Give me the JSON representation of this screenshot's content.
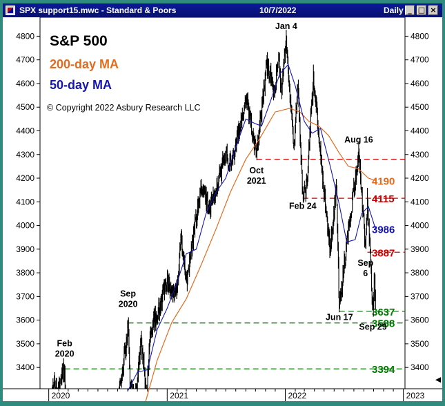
{
  "window": {
    "title": "SPX support15.mwc - Standard & Poors",
    "date": "10/7/2022",
    "period": "Daily",
    "buttons": {
      "minimize": "_",
      "maximize": "□",
      "close": "×"
    }
  },
  "colors": {
    "price": "#000000",
    "ma200": "#e46b1e",
    "ma50": "#1515b0",
    "resistance": "#cc0000",
    "support": "#007a00",
    "title_bar": "#0c1a9a",
    "frame": "#2e8b7d"
  },
  "chart_data": {
    "type": "line",
    "title": "S&P 500",
    "legend": [
      "200-day MA",
      "50-day MA"
    ],
    "copyright": "© Copyright 2022 Asbury Research LLC",
    "ylim": [
      3310,
      4880
    ],
    "y_ticks": [
      3400,
      3500,
      3600,
      3700,
      3800,
      3900,
      4000,
      4100,
      4200,
      4300,
      4400,
      4500,
      4600,
      4700,
      4800
    ],
    "x_range": [
      "2019-12-05",
      "2023-01-06"
    ],
    "x_ticks": [
      {
        "label": "2020",
        "date": "2020-01-01"
      },
      {
        "label": "2021",
        "date": "2021-01-01"
      },
      {
        "label": "2022",
        "date": "2022-01-01"
      },
      {
        "label": "2023",
        "date": "2023-01-01"
      }
    ],
    "price_low_band": [
      [
        "2019-12-05",
        3135
      ],
      [
        "2019-12-15",
        3185
      ],
      [
        "2019-12-31",
        3235
      ],
      [
        "2020-01-10",
        3280
      ],
      [
        "2020-01-17",
        3340
      ],
      [
        "2020-01-28",
        3270
      ],
      [
        "2020-02-05",
        3335
      ],
      [
        "2020-02-12",
        3375
      ],
      [
        "2020-02-19",
        3390
      ],
      [
        "2020-02-26",
        3120
      ],
      [
        "2020-03-10",
        2800
      ]
    ],
    "price_main_band": [
      [
        "2020-07-31",
        3270
      ],
      [
        "2020-08-14",
        3370
      ],
      [
        "2020-08-28",
        3510
      ],
      [
        "2020-09-02",
        3590
      ],
      [
        "2020-09-08",
        3335
      ],
      [
        "2020-09-23",
        3240
      ],
      [
        "2020-10-12",
        3530
      ],
      [
        "2020-10-30",
        3270
      ],
      [
        "2020-11-09",
        3550
      ],
      [
        "2020-11-30",
        3620
      ],
      [
        "2020-12-31",
        3756
      ],
      [
        "2021-01-29",
        3714
      ],
      [
        "2021-02-12",
        3935
      ],
      [
        "2021-03-04",
        3768
      ],
      [
        "2021-04-15",
        4170
      ],
      [
        "2021-05-12",
        4063
      ],
      [
        "2021-06-30",
        4297
      ],
      [
        "2021-07-19",
        4258
      ],
      [
        "2021-08-27",
        4509
      ],
      [
        "2021-09-02",
        4537
      ],
      [
        "2021-10-04",
        4300
      ],
      [
        "2021-11-04",
        4680
      ],
      [
        "2021-11-30",
        4567
      ],
      [
        "2021-12-10",
        4712
      ],
      [
        "2021-12-20",
        4568
      ],
      [
        "2022-01-04",
        4793
      ],
      [
        "2022-01-27",
        4327
      ],
      [
        "2022-02-09",
        4587
      ],
      [
        "2022-02-24",
        4115
      ],
      [
        "2022-03-08",
        4170
      ],
      [
        "2022-03-29",
        4631
      ],
      [
        "2022-04-28",
        4180
      ],
      [
        "2022-05-20",
        3901
      ],
      [
        "2022-06-08",
        4160
      ],
      [
        "2022-06-17",
        3666
      ],
      [
        "2022-07-08",
        3900
      ],
      [
        "2022-08-16",
        4305
      ],
      [
        "2022-09-06",
        3908
      ],
      [
        "2022-09-12",
        4110
      ],
      [
        "2022-09-29",
        3640
      ],
      [
        "2022-10-04",
        3790
      ],
      [
        "2022-10-07",
        3640
      ]
    ],
    "ma200": [
      [
        "2020-10-15",
        3200
      ],
      [
        "2020-12-01",
        3430
      ],
      [
        "2021-01-15",
        3590
      ],
      [
        "2021-03-01",
        3690
      ],
      [
        "2021-04-15",
        3830
      ],
      [
        "2021-06-01",
        3985
      ],
      [
        "2021-07-15",
        4140
      ],
      [
        "2021-09-01",
        4280
      ],
      [
        "2021-10-15",
        4370
      ],
      [
        "2021-12-01",
        4480
      ],
      [
        "2022-01-15",
        4495
      ],
      [
        "2022-02-15",
        4480
      ],
      [
        "2022-03-15",
        4440
      ],
      [
        "2022-04-15",
        4420
      ],
      [
        "2022-05-15",
        4380
      ],
      [
        "2022-06-15",
        4310
      ],
      [
        "2022-07-15",
        4250
      ],
      [
        "2022-08-15",
        4240
      ],
      [
        "2022-09-15",
        4200
      ],
      [
        "2022-10-07",
        4190
      ]
    ],
    "ma50": [
      [
        "2020-09-01",
        3300
      ],
      [
        "2020-10-01",
        3380
      ],
      [
        "2020-11-01",
        3390
      ],
      [
        "2020-12-01",
        3560
      ],
      [
        "2021-01-01",
        3650
      ],
      [
        "2021-02-01",
        3760
      ],
      [
        "2021-03-01",
        3880
      ],
      [
        "2021-04-01",
        3900
      ],
      [
        "2021-05-01",
        4050
      ],
      [
        "2021-06-01",
        4140
      ],
      [
        "2021-07-01",
        4200
      ],
      [
        "2021-08-01",
        4330
      ],
      [
        "2021-09-01",
        4450
      ],
      [
        "2021-10-01",
        4430
      ],
      [
        "2021-10-20",
        4420
      ],
      [
        "2021-11-15",
        4520
      ],
      [
        "2021-12-15",
        4640
      ],
      [
        "2022-01-10",
        4680
      ],
      [
        "2022-02-01",
        4590
      ],
      [
        "2022-03-01",
        4440
      ],
      [
        "2022-03-25",
        4390
      ],
      [
        "2022-04-20",
        4410
      ],
      [
        "2022-05-20",
        4250
      ],
      [
        "2022-06-15",
        4100
      ],
      [
        "2022-07-10",
        3930
      ],
      [
        "2022-08-05",
        3940
      ],
      [
        "2022-08-25",
        4050
      ],
      [
        "2022-09-15",
        4080
      ],
      [
        "2022-10-07",
        3986
      ]
    ],
    "levels": [
      {
        "name": "ma200-label",
        "value": 4190,
        "label": "4190",
        "color": "#e46b1e",
        "line": false
      },
      {
        "name": "resistance-4115",
        "value": 4115,
        "label": "4115",
        "color": "#cc0000",
        "line": true,
        "dash": "red",
        "from": "2022-02-24"
      },
      {
        "name": "resistance-4280",
        "value": 4280,
        "label": "",
        "color": "#cc0000",
        "line": true,
        "dash": "red",
        "from": "2021-10-04"
      },
      {
        "name": "ma50-label",
        "value": 3986,
        "label": "3986",
        "color": "#1515b0",
        "line": false
      },
      {
        "name": "resistance-3887",
        "value": 3887,
        "label": "3887",
        "color": "#cc0000",
        "line": true,
        "dash": "red",
        "from": "2022-09-12"
      },
      {
        "name": "support-3637",
        "value": 3637,
        "label": "3637",
        "color": "#007a00",
        "line": true,
        "dash": "green",
        "from": "2022-06-17"
      },
      {
        "name": "support-3588",
        "value": 3588,
        "label": "3588",
        "color": "#007a00",
        "line": true,
        "dash": "green",
        "from": "2020-09-02"
      },
      {
        "name": "support-3394",
        "value": 3394,
        "label": "3394",
        "color": "#007a00",
        "line": true,
        "dash": "green",
        "from": "2020-02-19"
      }
    ],
    "annotations": [
      {
        "name": "jan-4",
        "lines": [
          "Jan 4"
        ],
        "date": "2022-01-04",
        "y": 4830
      },
      {
        "name": "oct-2021",
        "lines": [
          "Oct",
          "2021"
        ],
        "date": "2021-10-04",
        "y": 4220
      },
      {
        "name": "aug-16",
        "lines": [
          "Aug 16"
        ],
        "date": "2022-08-16",
        "y": 4350
      },
      {
        "name": "feb-24",
        "lines": [
          "Feb 24"
        ],
        "date": "2022-02-24",
        "y": 4070
      },
      {
        "name": "sep-6",
        "lines": [
          "Sep",
          "6"
        ],
        "date": "2022-09-06",
        "y": 3830
      },
      {
        "name": "jun-17",
        "lines": [
          "Jun 17"
        ],
        "date": "2022-06-17",
        "y": 3600
      },
      {
        "name": "sep-29",
        "lines": [
          "Sep 29"
        ],
        "date": "2022-09-29",
        "y": 3560
      },
      {
        "name": "sep-2020",
        "lines": [
          "Sep",
          "2020"
        ],
        "date": "2020-09-02",
        "y": 3700
      },
      {
        "name": "feb-2020",
        "lines": [
          "Feb",
          "2020"
        ],
        "date": "2020-02-19",
        "y": 3490
      }
    ]
  }
}
